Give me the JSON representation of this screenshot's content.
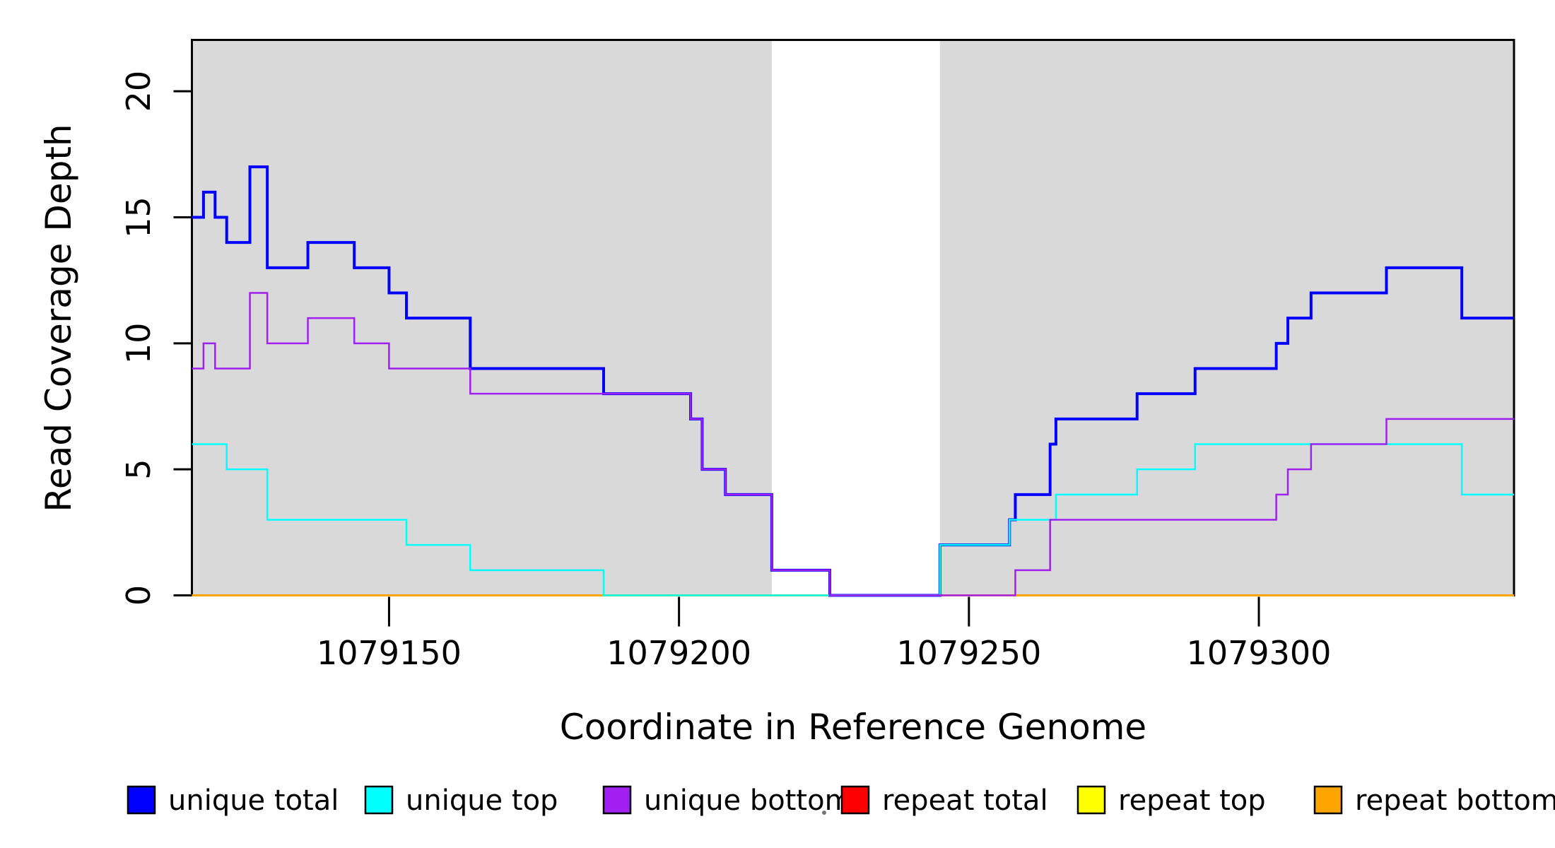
{
  "chart_data": {
    "type": "line",
    "step_mode": "post",
    "title": "",
    "xlabel": "Coordinate in Reference Genome",
    "ylabel": "Read Coverage Depth",
    "x_range": [
      1079116,
      1079344
    ],
    "ylim": [
      0,
      22
    ],
    "x_ticks": [
      1079150,
      1079200,
      1079250,
      1079300
    ],
    "y_ticks": [
      0,
      5,
      10,
      15,
      20
    ],
    "grid": false,
    "background_shading": {
      "color": "#D9D9D9",
      "regions": [
        {
          "from": 1079116,
          "to": 1079216
        },
        {
          "from": 1079245,
          "to": 1079344
        }
      ]
    },
    "series": [
      {
        "name": "repeat total",
        "color": "#FF0000",
        "width": 3,
        "points": [
          [
            1079116,
            0
          ]
        ]
      },
      {
        "name": "repeat top",
        "color": "#FFFF00",
        "width": 3,
        "points": [
          [
            1079116,
            0
          ]
        ]
      },
      {
        "name": "repeat bottom",
        "color": "#FFA500",
        "width": 3,
        "points": [
          [
            1079116,
            0
          ]
        ]
      },
      {
        "name": "unique total",
        "color": "#0000FF",
        "width": 4,
        "points": [
          [
            1079116,
            15
          ],
          [
            1079118,
            16
          ],
          [
            1079120,
            15
          ],
          [
            1079122,
            14
          ],
          [
            1079126,
            17
          ],
          [
            1079129,
            13
          ],
          [
            1079136,
            14
          ],
          [
            1079144,
            13
          ],
          [
            1079150,
            12
          ],
          [
            1079153,
            11
          ],
          [
            1079164,
            9
          ],
          [
            1079187,
            8
          ],
          [
            1079202,
            7
          ],
          [
            1079204,
            5
          ],
          [
            1079208,
            4
          ],
          [
            1079216,
            1
          ],
          [
            1079226,
            0
          ],
          [
            1079245,
            2
          ],
          [
            1079257,
            3
          ],
          [
            1079258,
            4
          ],
          [
            1079264,
            6
          ],
          [
            1079265,
            7
          ],
          [
            1079279,
            8
          ],
          [
            1079289,
            9
          ],
          [
            1079303,
            10
          ],
          [
            1079305,
            11
          ],
          [
            1079309,
            12
          ],
          [
            1079322,
            13
          ],
          [
            1079335,
            11
          ]
        ]
      },
      {
        "name": "unique top",
        "color": "#00FFFF",
        "width": 2.5,
        "points": [
          [
            1079116,
            6
          ],
          [
            1079122,
            5
          ],
          [
            1079129,
            3
          ],
          [
            1079153,
            2
          ],
          [
            1079164,
            1
          ],
          [
            1079187,
            0
          ],
          [
            1079245,
            2
          ],
          [
            1079257,
            3
          ],
          [
            1079265,
            4
          ],
          [
            1079279,
            5
          ],
          [
            1079289,
            6
          ],
          [
            1079335,
            4
          ]
        ]
      },
      {
        "name": "unique bottom",
        "color": "#A020F0",
        "width": 2.5,
        "points": [
          [
            1079116,
            9
          ],
          [
            1079118,
            10
          ],
          [
            1079120,
            9
          ],
          [
            1079126,
            12
          ],
          [
            1079129,
            10
          ],
          [
            1079136,
            11
          ],
          [
            1079144,
            10
          ],
          [
            1079150,
            9
          ],
          [
            1079164,
            8
          ],
          [
            1079202,
            7
          ],
          [
            1079204,
            5
          ],
          [
            1079208,
            4
          ],
          [
            1079216,
            1
          ],
          [
            1079226,
            0
          ],
          [
            1079258,
            1
          ],
          [
            1079264,
            3
          ],
          [
            1079303,
            4
          ],
          [
            1079305,
            5
          ],
          [
            1079309,
            6
          ],
          [
            1079322,
            7
          ]
        ]
      }
    ],
    "legend": {
      "position": "bottom",
      "items": [
        {
          "label": "unique total",
          "color": "#0000FF"
        },
        {
          "label": "unique top",
          "color": "#00FFFF"
        },
        {
          "label": "unique bottom",
          "color": "#A020F0"
        },
        {
          "label": "repeat total",
          "color": "#FF0000"
        },
        {
          "label": "repeat top",
          "color": "#FFFF00"
        },
        {
          "label": "repeat bottom",
          "color": "#FFA500"
        }
      ]
    }
  }
}
